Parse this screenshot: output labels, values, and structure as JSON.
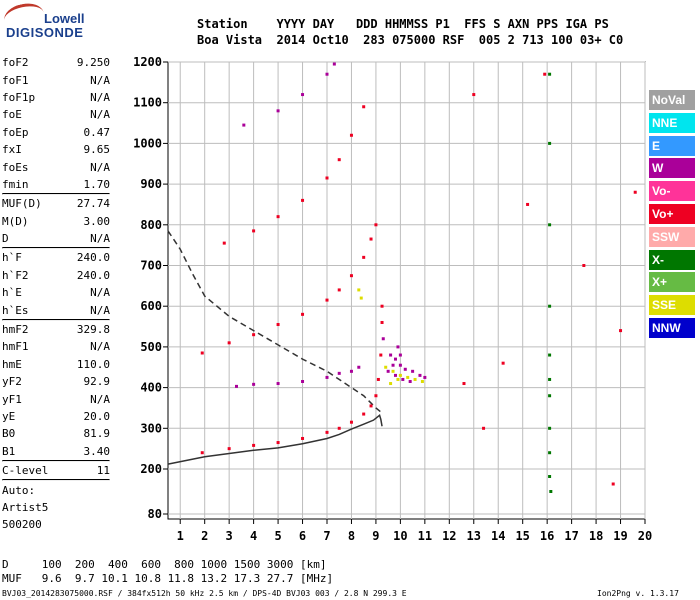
{
  "logo": {
    "line1": "Lowell",
    "line2": "DIGISONDE"
  },
  "header": {
    "line1": "Station    YYYY DAY   DDD HHMMSS P1  FFS S AXN PPS IGA PS",
    "line2": "Boa Vista  2014 Oct10  283 075000 RSF  005 2 713 100 03+ C0"
  },
  "params": {
    "group1": [
      {
        "name": "foF2",
        "value": "9.250"
      },
      {
        "name": "foF1",
        "value": "N/A"
      },
      {
        "name": "foF1p",
        "value": "N/A"
      },
      {
        "name": "foE",
        "value": "N/A"
      },
      {
        "name": "foEp",
        "value": "0.47"
      },
      {
        "name": "fxI",
        "value": "9.65"
      },
      {
        "name": "foEs",
        "value": "N/A"
      },
      {
        "name": "fmin",
        "value": "1.70"
      }
    ],
    "group2": [
      {
        "name": "MUF(D)",
        "value": "27.74"
      },
      {
        "name": "M(D)",
        "value": "3.00"
      },
      {
        "name": "D",
        "value": "N/A"
      }
    ],
    "group3": [
      {
        "name": "h`F",
        "value": "240.0"
      },
      {
        "name": "h`F2",
        "value": "240.0"
      },
      {
        "name": "h`E",
        "value": "N/A"
      },
      {
        "name": "h`Es",
        "value": "N/A"
      }
    ],
    "group4": [
      {
        "name": "hmF2",
        "value": "329.8"
      },
      {
        "name": "hmF1",
        "value": "N/A"
      },
      {
        "name": "hmE",
        "value": "110.0"
      },
      {
        "name": "yF2",
        "value": "92.9"
      },
      {
        "name": "yF1",
        "value": "N/A"
      },
      {
        "name": "yE",
        "value": "20.0"
      },
      {
        "name": "B0",
        "value": "81.9"
      },
      {
        "name": "B1",
        "value": "3.40"
      }
    ],
    "clevel": {
      "name": "C-level",
      "value": "11"
    },
    "auto": [
      "Auto:",
      "Artist5",
      "500200"
    ]
  },
  "legend": [
    {
      "label": "NoVal",
      "color": "#a0a0a0"
    },
    {
      "label": "NNE",
      "color": "#00e5ee"
    },
    {
      "label": "E",
      "color": "#3399ff"
    },
    {
      "label": "W",
      "color": "#aa0099"
    },
    {
      "label": "Vo-",
      "color": "#ff3399"
    },
    {
      "label": "Vo+",
      "color": "#ee0022"
    },
    {
      "label": "SSW",
      "color": "#ffaaaa"
    },
    {
      "label": "X-",
      "color": "#007700"
    },
    {
      "label": "X+",
      "color": "#66bb44"
    },
    {
      "label": "SSE",
      "color": "#dddd00"
    },
    {
      "label": "NNW",
      "color": "#0000cc"
    }
  ],
  "muf_table": {
    "d_line": "D     100  200  400  600  800 1000 1500 3000 [km]",
    "muf_line": "MUF   9.6  9.7 10.1 10.8 11.8 13.2 17.3 27.7 [MHz]"
  },
  "footer": {
    "left": "BVJ03_2014283075000.RSF / 384fx512h 50 kHz 2.5 km / DPS-4D BVJ03 003 / 2.8 N 299.3 E",
    "right": "Ion2Png v. 1.3.17"
  },
  "chart_data": {
    "type": "scatter",
    "title": "",
    "xlabel": "",
    "ylabel": "",
    "xlim": [
      0.5,
      20
    ],
    "ylim": [
      80,
      1200
    ],
    "x_ticks": [
      1,
      2,
      3,
      4,
      5,
      6,
      7,
      8,
      9,
      10,
      11,
      12,
      13,
      14,
      15,
      16,
      17,
      18,
      19,
      20
    ],
    "y_ticks": [
      80,
      200,
      300,
      400,
      500,
      600,
      700,
      800,
      900,
      1000,
      1100,
      1200
    ],
    "grid": true,
    "series": [
      {
        "color": "#ee0022",
        "points": [
          [
            1.9,
            240
          ],
          [
            3,
            250
          ],
          [
            4,
            258
          ],
          [
            5,
            265
          ],
          [
            6,
            275
          ],
          [
            7,
            290
          ],
          [
            7.5,
            300
          ],
          [
            8,
            315
          ],
          [
            8.5,
            335
          ],
          [
            8.8,
            355
          ],
          [
            9.0,
            380
          ],
          [
            9.1,
            420
          ],
          [
            9.2,
            480
          ],
          [
            9.25,
            560
          ],
          [
            9.25,
            600
          ]
        ]
      },
      {
        "color": "#ee0022",
        "points": [
          [
            1.9,
            485
          ],
          [
            3,
            510
          ],
          [
            4,
            530
          ],
          [
            5,
            555
          ],
          [
            6,
            580
          ],
          [
            7,
            615
          ],
          [
            7.5,
            640
          ],
          [
            8,
            675
          ],
          [
            8.5,
            720
          ],
          [
            8.8,
            765
          ],
          [
            9.0,
            800
          ]
        ]
      },
      {
        "color": "#ee0022",
        "points": [
          [
            2.8,
            755
          ],
          [
            4,
            785
          ],
          [
            5,
            820
          ],
          [
            6,
            860
          ],
          [
            7,
            915
          ],
          [
            7.5,
            960
          ],
          [
            8,
            1020
          ],
          [
            8.5,
            1090
          ]
        ]
      },
      {
        "color": "#aa0099",
        "points": [
          [
            3.6,
            1045
          ],
          [
            5,
            1080
          ],
          [
            6,
            1120
          ],
          [
            7,
            1170
          ],
          [
            7.3,
            1195
          ]
        ]
      },
      {
        "color": "#aa0099",
        "points": [
          [
            3.3,
            403
          ],
          [
            4,
            408
          ],
          [
            5,
            410
          ],
          [
            6,
            415
          ],
          [
            7,
            425
          ],
          [
            7.5,
            435
          ],
          [
            8,
            440
          ],
          [
            8.3,
            450
          ]
        ]
      },
      {
        "color": "#aa0099",
        "points": [
          [
            9.3,
            520
          ],
          [
            9.6,
            480
          ],
          [
            9.8,
            470
          ],
          [
            10,
            455
          ],
          [
            10.2,
            445
          ],
          [
            10.5,
            440
          ],
          [
            10.8,
            430
          ],
          [
            11,
            425
          ],
          [
            9.5,
            440
          ],
          [
            9.8,
            430
          ],
          [
            10.1,
            420
          ],
          [
            10.4,
            415
          ],
          [
            9.9,
            500
          ],
          [
            10,
            480
          ],
          [
            9.7,
            455
          ]
        ]
      },
      {
        "color": "#dddd00",
        "points": [
          [
            9.4,
            450
          ],
          [
            9.7,
            440
          ],
          [
            10,
            430
          ],
          [
            10.3,
            425
          ],
          [
            10.6,
            420
          ],
          [
            10.9,
            415
          ],
          [
            9.6,
            410
          ],
          [
            9.9,
            420
          ],
          [
            8.3,
            640
          ],
          [
            8.4,
            620
          ]
        ]
      },
      {
        "color": "#007700",
        "points": [
          [
            16.1,
            1170
          ],
          [
            16.1,
            1000
          ],
          [
            16.1,
            800
          ],
          [
            16.1,
            600
          ],
          [
            16.1,
            480
          ],
          [
            16.1,
            420
          ],
          [
            16.1,
            380
          ],
          [
            16.1,
            300
          ],
          [
            16.1,
            240
          ],
          [
            16.1,
            180
          ],
          [
            16.15,
            140
          ]
        ]
      },
      {
        "color": "#ee0022",
        "points": [
          [
            12.6,
            410
          ],
          [
            13.0,
            1120
          ],
          [
            14.2,
            460
          ],
          [
            15.9,
            1170
          ],
          [
            17.5,
            700
          ],
          [
            18.7,
            160
          ],
          [
            19.0,
            540
          ],
          [
            19.6,
            880
          ],
          [
            13.4,
            300
          ],
          [
            15.2,
            850
          ]
        ]
      }
    ],
    "annotations": [
      {
        "label": "profile",
        "style": "solid",
        "color": "#333333",
        "points": [
          [
            0.5,
            212
          ],
          [
            2,
            230
          ],
          [
            3,
            238
          ],
          [
            4,
            246
          ],
          [
            5,
            252
          ],
          [
            6,
            262
          ],
          [
            7,
            275
          ],
          [
            7.5,
            285
          ],
          [
            8,
            298
          ],
          [
            8.5,
            310
          ],
          [
            8.9,
            320
          ],
          [
            9.15,
            332
          ],
          [
            9.2,
            322
          ],
          [
            9.25,
            305
          ]
        ]
      },
      {
        "label": "model",
        "style": "dashed",
        "color": "#333333",
        "points": [
          [
            0.5,
            785
          ],
          [
            1,
            740
          ],
          [
            1.5,
            680
          ],
          [
            2,
            625
          ],
          [
            3,
            575
          ],
          [
            4,
            540
          ],
          [
            5,
            505
          ],
          [
            6,
            470
          ],
          [
            7,
            440
          ],
          [
            8,
            400
          ],
          [
            8.5,
            380
          ],
          [
            9,
            350
          ],
          [
            9.2,
            340
          ]
        ]
      }
    ]
  }
}
